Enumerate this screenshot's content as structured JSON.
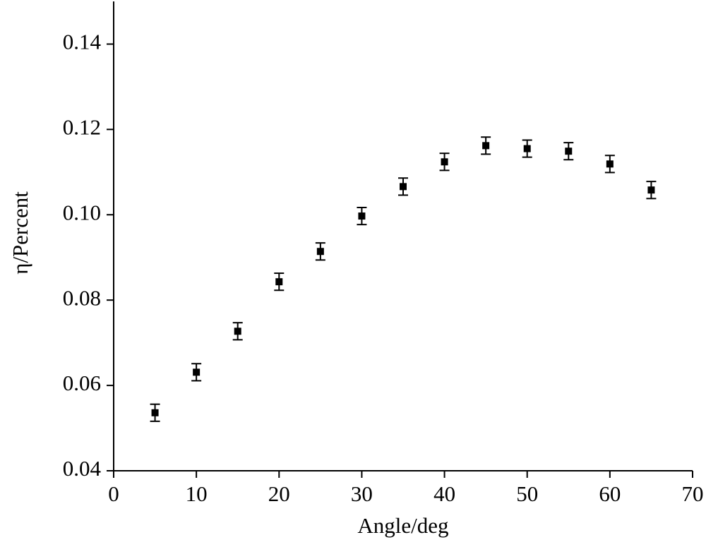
{
  "chart_data": {
    "type": "scatter",
    "x_label": "Angle/deg",
    "y_label": "η/Percent",
    "x": [
      5,
      10,
      15,
      20,
      25,
      30,
      35,
      40,
      45,
      50,
      55,
      60,
      65
    ],
    "values": [
      0.0536,
      0.0631,
      0.0727,
      0.0843,
      0.0914,
      0.0997,
      0.1066,
      0.1124,
      0.1162,
      0.1155,
      0.1149,
      0.1119,
      0.1058
    ],
    "errors": [
      0.002,
      0.002,
      0.002,
      0.002,
      0.002,
      0.002,
      0.002,
      0.002,
      0.002,
      0.002,
      0.002,
      0.002,
      0.002
    ],
    "color": "#000000",
    "xlim": [
      0,
      70
    ],
    "xticks": [
      0,
      10,
      20,
      30,
      40,
      50,
      60,
      70
    ],
    "ylim": [
      0.04,
      0.15
    ],
    "yticks": [
      0.04,
      0.06,
      0.08,
      {
        "value": 0.1,
        "label": "0.10"
      },
      0.12,
      0.14
    ]
  }
}
